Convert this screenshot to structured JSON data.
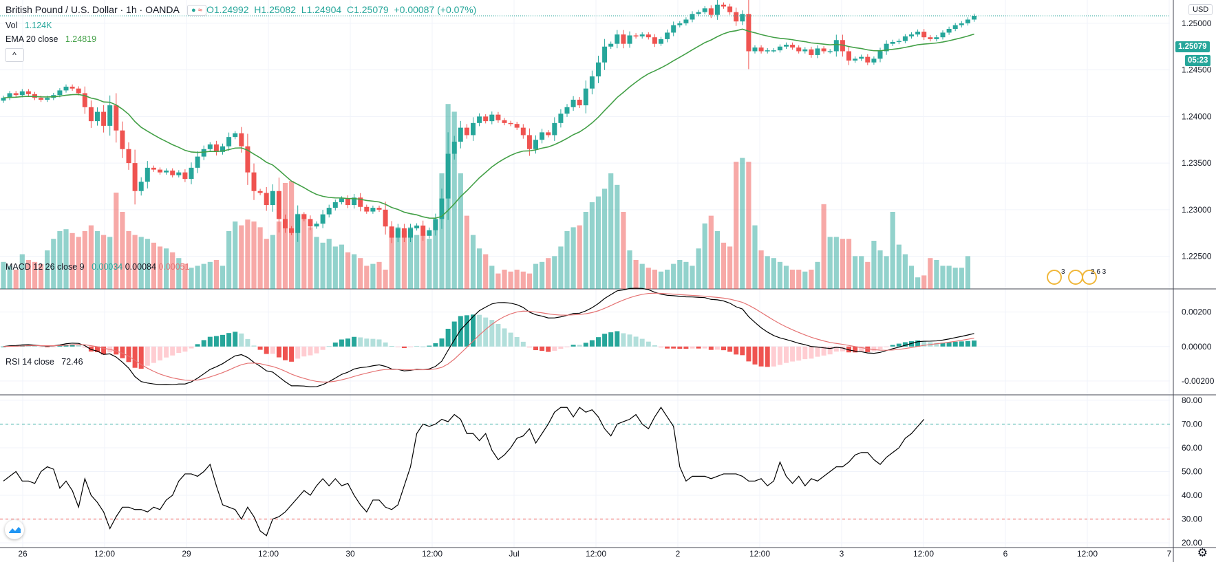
{
  "header": {
    "symbol": "British Pound / U.S. Dollar · 1h · OANDA",
    "ohlc": {
      "o": "O1.24992",
      "h": "H1.25082",
      "l": "L1.24904",
      "c": "C1.25079",
      "chg": "+0.00087 (+0.07%)"
    },
    "vol_label": "Vol",
    "vol_value": "1.124K",
    "ema_label": "EMA 20 close",
    "ema_value": "1.24819",
    "currency": "USD",
    "collapse": "^"
  },
  "macd_legend": {
    "label": "MACD 12 26 close 9",
    "hist": "0.00034",
    "macd": "0.00084",
    "signal": "0.00051"
  },
  "rsi_legend": {
    "label": "RSI 14 close",
    "value": "72.46"
  },
  "price_tag": {
    "value": "1.25079",
    "countdown": "05:23"
  },
  "events": [
    "3",
    "2 6 3"
  ],
  "colors": {
    "up": "#26a69a",
    "down": "#ef5350",
    "ema": "#43a047",
    "macd": "#000000",
    "signal": "#e57373",
    "grid": "#f0f3fa"
  },
  "chart_data": [
    {
      "type": "candlestick",
      "title": "British Pound / U.S. Dollar · 1h · OANDA",
      "ylim": [
        1.2215,
        1.2525
      ],
      "y_ticks": [
        "1.25000",
        "1.24500",
        "1.24000",
        "1.23500",
        "1.23000",
        "1.22500"
      ],
      "x_ticks": [
        "26",
        "12:00",
        "29",
        "12:00",
        "30",
        "12:00",
        "Jul",
        "12:00",
        "2",
        "12:00",
        "3",
        "12:00",
        "6",
        "12:00",
        "7"
      ],
      "closes": [
        1.242,
        1.2425,
        1.2423,
        1.2427,
        1.2424,
        1.242,
        1.2418,
        1.242,
        1.2423,
        1.2428,
        1.2432,
        1.243,
        1.2425,
        1.241,
        1.2395,
        1.2405,
        1.239,
        1.2412,
        1.2385,
        1.2365,
        1.235,
        1.232,
        1.233,
        1.2345,
        1.2343,
        1.234,
        1.2342,
        1.2337,
        1.234,
        1.2333,
        1.2345,
        1.2357,
        1.2365,
        1.237,
        1.2362,
        1.2368,
        1.2378,
        1.2382,
        1.2368,
        1.234,
        1.232,
        1.2318,
        1.2305,
        1.232,
        1.229,
        1.228,
        1.2275,
        1.2295,
        1.229,
        1.2282,
        1.2285,
        1.2295,
        1.2302,
        1.2308,
        1.2312,
        1.2305,
        1.2313,
        1.2303,
        1.2298,
        1.2302,
        1.23,
        1.2282,
        1.227,
        1.228,
        1.227,
        1.228,
        1.2283,
        1.2272,
        1.2278,
        1.229,
        1.2312,
        1.236,
        1.2373,
        1.2388,
        1.238,
        1.2393,
        1.24,
        1.2395,
        1.2402,
        1.2396,
        1.2393,
        1.2392,
        1.2388,
        1.238,
        1.2365,
        1.2375,
        1.2383,
        1.238,
        1.2393,
        1.2403,
        1.241,
        1.2418,
        1.2412,
        1.243,
        1.2443,
        1.2458,
        1.2475,
        1.2478,
        1.2488,
        1.2478,
        1.2487,
        1.2486,
        1.2488,
        1.2485,
        1.2478,
        1.2483,
        1.249,
        1.2498,
        1.25,
        1.2504,
        1.251,
        1.2512,
        1.2516,
        1.2509,
        1.252,
        1.2518,
        1.2512,
        1.2502,
        1.251,
        1.247,
        1.2474,
        1.247,
        1.2471,
        1.2471,
        1.2475,
        1.2477,
        1.2474,
        1.247,
        1.2472,
        1.2466,
        1.2473,
        1.247,
        1.247,
        1.2482,
        1.247,
        1.246,
        1.2462,
        1.2464,
        1.2458,
        1.2462,
        1.247,
        1.2478,
        1.248,
        1.2481,
        1.2486,
        1.2488,
        1.2491,
        1.2485,
        1.2483,
        1.2485,
        1.249,
        1.2494,
        1.2498,
        1.25,
        1.2504,
        1.2508
      ],
      "ema20": "EMA 20 close",
      "volume": [
        14,
        12,
        10,
        18,
        15,
        14,
        13,
        20,
        26,
        30,
        31,
        29,
        27,
        30,
        33,
        30,
        28,
        27,
        50,
        40,
        30,
        28,
        27,
        26,
        24,
        22,
        21,
        19,
        16,
        13,
        11,
        12,
        13,
        14,
        15,
        12,
        30,
        35,
        33,
        36,
        35,
        32,
        26,
        28,
        35,
        55,
        56,
        39,
        39,
        32,
        27,
        24,
        26,
        22,
        23,
        19,
        18,
        16,
        12,
        13,
        14,
        10,
        30,
        32,
        30,
        32,
        28,
        28,
        26,
        36,
        60,
        96,
        92,
        60,
        38,
        28,
        21,
        18,
        12,
        8,
        10,
        9,
        10,
        9,
        8,
        13,
        14,
        16,
        17,
        22,
        30,
        32,
        33,
        40,
        45,
        48,
        52,
        60,
        54,
        40,
        20,
        15,
        13,
        11,
        10,
        9,
        10,
        13,
        15,
        14,
        12,
        21,
        34,
        38,
        30,
        24,
        22,
        66,
        68,
        66,
        33,
        20,
        17,
        16,
        14,
        12,
        10,
        10,
        9,
        10,
        14,
        44,
        27,
        27,
        26,
        26,
        17,
        17,
        14,
        25,
        20,
        17,
        40,
        23,
        18,
        12,
        6,
        7,
        16,
        15,
        12,
        12,
        11,
        11,
        17
      ],
      "vol_ylim": [
        0,
        150
      ]
    },
    {
      "type": "line",
      "title": "MACD 12 26 close 9",
      "ylim": [
        -0.0028,
        0.0033
      ],
      "y_ticks": [
        "0.00200",
        "0.00000",
        "-0.00200"
      ]
    },
    {
      "type": "line",
      "title": "RSI 14 close",
      "ylim": [
        18,
        82
      ],
      "y_ticks": [
        "80.00",
        "70.00",
        "60.00",
        "50.00",
        "40.00",
        "30.00",
        "20.00"
      ],
      "bands": [
        70,
        30
      ],
      "values": [
        46,
        48,
        50,
        46,
        46,
        45,
        50,
        52,
        51,
        43,
        46,
        42,
        35,
        47,
        40,
        37,
        33,
        26,
        31,
        35,
        35,
        34,
        34,
        33,
        35,
        34,
        38,
        40,
        46,
        49,
        49,
        48,
        50,
        53,
        44,
        36,
        35,
        34,
        30,
        35,
        31,
        25,
        23,
        30,
        31,
        33,
        36,
        39,
        42,
        40,
        44,
        47,
        44,
        47,
        44,
        45,
        40,
        36,
        33,
        38,
        38,
        35,
        34,
        36,
        44,
        52,
        66,
        70,
        69,
        70,
        72,
        71,
        74,
        72,
        66,
        66,
        63,
        66,
        59,
        55,
        57,
        60,
        64,
        65,
        68,
        62,
        66,
        70,
        75,
        77,
        77,
        73,
        77,
        75,
        76,
        73,
        68,
        65,
        70,
        71,
        72,
        74,
        70,
        68,
        73,
        77,
        73,
        69,
        52,
        46,
        48,
        48,
        48,
        47,
        48,
        49,
        49,
        49,
        48,
        46,
        46,
        47,
        44,
        46,
        54,
        48,
        45,
        48,
        44,
        47,
        46,
        48,
        50,
        52,
        52,
        54,
        57,
        58,
        58,
        55,
        53,
        56,
        58,
        60,
        64,
        66,
        69,
        72
      ]
    }
  ]
}
